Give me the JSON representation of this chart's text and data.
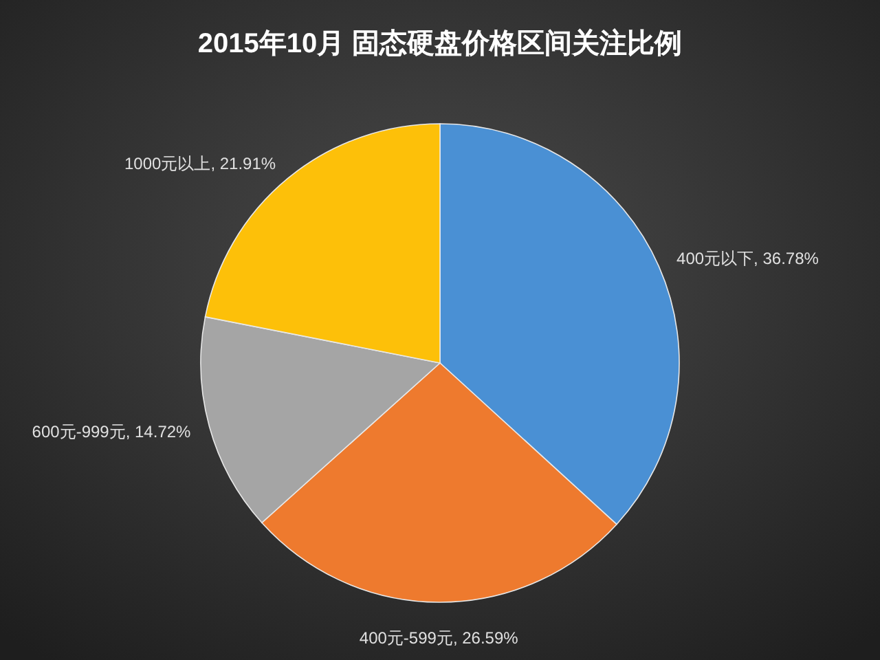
{
  "chart_data": {
    "type": "pie",
    "title": "2015年10月  固态硬盘价格区间关注比例",
    "categories": [
      "400元以下",
      "400元-599元",
      "600元-999元",
      "1000元以上"
    ],
    "values": [
      36.78,
      26.59,
      14.72,
      21.91
    ],
    "colors": [
      "#4a90d4",
      "#ee7a2e",
      "#a5a5a5",
      "#fdc009"
    ],
    "value_labels": [
      ", 36.78%",
      ", 26.59%",
      ", 14.72%",
      ", 21.91%"
    ]
  }
}
